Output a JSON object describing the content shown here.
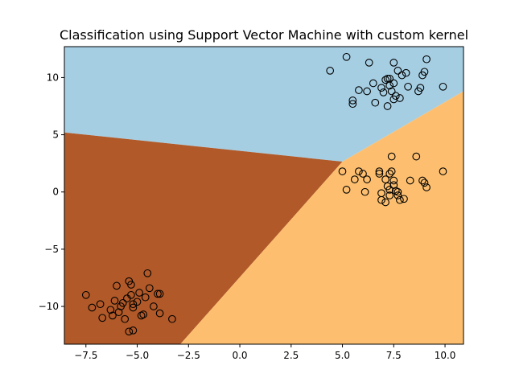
{
  "chart_data": {
    "type": "scatter",
    "title": "Classification using Support Vector Machine with custom kernel",
    "xlabel": "",
    "ylabel": "",
    "xlim": [
      -8.55,
      10.9
    ],
    "ylim": [
      -13.3,
      12.7
    ],
    "xticks": [
      -7.5,
      -5.0,
      -2.5,
      0.0,
      2.5,
      5.0,
      7.5,
      10.0
    ],
    "xtick_labels": [
      "−7.5",
      "−5.0",
      "−2.5",
      "0.0",
      "2.5",
      "5.0",
      "7.5",
      "10.0"
    ],
    "yticks": [
      -10,
      -5,
      0,
      5,
      10
    ],
    "ytick_labels": [
      "−10",
      "−5",
      "0",
      "5",
      "10"
    ],
    "grid": false,
    "legend": false,
    "background_regions": [
      {
        "class": "upper",
        "color": "#a6cee3",
        "polygon": [
          [
            -8.55,
            12.7
          ],
          [
            10.9,
            12.7
          ],
          [
            10.9,
            8.8
          ],
          [
            5.0,
            2.65
          ],
          [
            -8.55,
            5.2
          ]
        ]
      },
      {
        "class": "left",
        "color": "#b15928",
        "polygon": [
          [
            -8.55,
            5.2
          ],
          [
            5.0,
            2.65
          ],
          [
            -2.9,
            -13.3
          ],
          [
            -8.55,
            -13.3
          ]
        ]
      },
      {
        "class": "right",
        "color": "#fdbf6f",
        "polygon": [
          [
            5.0,
            2.65
          ],
          [
            10.9,
            8.8
          ],
          [
            10.9,
            -13.3
          ],
          [
            -2.9,
            -13.3
          ]
        ]
      }
    ],
    "series": [
      {
        "cluster": "upper-right",
        "points": [
          [
            4.4,
            10.6
          ],
          [
            5.2,
            11.8
          ],
          [
            5.5,
            7.7
          ],
          [
            5.5,
            8.0
          ],
          [
            5.8,
            8.9
          ],
          [
            6.2,
            8.8
          ],
          [
            6.3,
            11.3
          ],
          [
            6.5,
            9.5
          ],
          [
            6.6,
            7.8
          ],
          [
            6.9,
            9.1
          ],
          [
            7.0,
            8.7
          ],
          [
            7.1,
            9.8
          ],
          [
            7.2,
            9.9
          ],
          [
            7.2,
            7.5
          ],
          [
            7.3,
            9.9
          ],
          [
            7.3,
            9.3
          ],
          [
            7.4,
            8.8
          ],
          [
            7.5,
            11.3
          ],
          [
            7.5,
            9.5
          ],
          [
            7.5,
            8.1
          ],
          [
            7.6,
            8.4
          ],
          [
            7.7,
            10.6
          ],
          [
            7.8,
            8.2
          ],
          [
            7.9,
            10.2
          ],
          [
            8.1,
            10.4
          ],
          [
            8.2,
            9.2
          ],
          [
            8.7,
            8.8
          ],
          [
            8.8,
            9.1
          ],
          [
            8.9,
            10.2
          ],
          [
            9.1,
            11.6
          ],
          [
            9.0,
            10.5
          ],
          [
            9.9,
            9.2
          ]
        ]
      },
      {
        "cluster": "middle-right",
        "points": [
          [
            5.0,
            1.8
          ],
          [
            5.2,
            0.2
          ],
          [
            5.6,
            1.1
          ],
          [
            5.8,
            1.8
          ],
          [
            6.0,
            1.6
          ],
          [
            6.1,
            0.0
          ],
          [
            6.2,
            1.1
          ],
          [
            6.8,
            1.8
          ],
          [
            6.8,
            1.6
          ],
          [
            6.9,
            -0.1
          ],
          [
            6.9,
            -0.7
          ],
          [
            7.1,
            1.1
          ],
          [
            7.1,
            -0.9
          ],
          [
            7.2,
            0.5
          ],
          [
            7.3,
            1.6
          ],
          [
            7.3,
            0.2
          ],
          [
            7.3,
            -0.3
          ],
          [
            7.4,
            1.8
          ],
          [
            7.5,
            1.0
          ],
          [
            7.5,
            0.6
          ],
          [
            7.6,
            0.1
          ],
          [
            7.7,
            -0.3
          ],
          [
            7.8,
            -0.7
          ],
          [
            8.0,
            -0.6
          ],
          [
            8.3,
            1.0
          ],
          [
            8.6,
            3.1
          ],
          [
            8.9,
            1.0
          ],
          [
            9.0,
            0.8
          ],
          [
            9.1,
            0.4
          ],
          [
            9.9,
            1.8
          ],
          [
            7.7,
            0.0
          ],
          [
            7.4,
            3.1
          ]
        ]
      },
      {
        "cluster": "lower-left",
        "points": [
          [
            -7.5,
            -9.0
          ],
          [
            -7.2,
            -10.1
          ],
          [
            -6.8,
            -9.8
          ],
          [
            -6.7,
            -11.0
          ],
          [
            -6.3,
            -10.3
          ],
          [
            -6.2,
            -10.8
          ],
          [
            -6.1,
            -9.5
          ],
          [
            -6.0,
            -8.2
          ],
          [
            -5.9,
            -10.5
          ],
          [
            -5.8,
            -10.0
          ],
          [
            -5.7,
            -9.7
          ],
          [
            -5.6,
            -11.1
          ],
          [
            -5.5,
            -9.3
          ],
          [
            -5.4,
            -12.2
          ],
          [
            -5.4,
            -7.8
          ],
          [
            -5.3,
            -8.1
          ],
          [
            -5.3,
            -9.0
          ],
          [
            -5.2,
            -9.8
          ],
          [
            -5.2,
            -10.1
          ],
          [
            -5.2,
            -12.1
          ],
          [
            -5.0,
            -9.6
          ],
          [
            -4.9,
            -8.8
          ],
          [
            -4.8,
            -10.8
          ],
          [
            -4.7,
            -10.7
          ],
          [
            -4.6,
            -9.2
          ],
          [
            -4.5,
            -7.1
          ],
          [
            -4.4,
            -8.4
          ],
          [
            -4.2,
            -10.0
          ],
          [
            -4.0,
            -8.9
          ],
          [
            -3.9,
            -8.9
          ],
          [
            -3.9,
            -10.6
          ],
          [
            -3.3,
            -11.1
          ]
        ]
      }
    ]
  }
}
